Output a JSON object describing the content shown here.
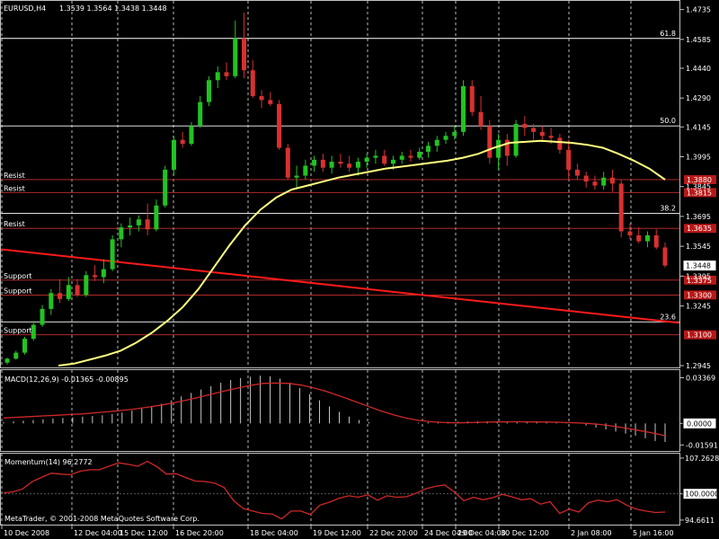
{
  "window": {
    "title": "EURUSD,H4",
    "ohlc": "1.3539 1.3564 1.3438 1.3448",
    "copyright": "MetaTrader, © 2001-2008 MetaQuotes Software Corp."
  },
  "chart_data": [
    {
      "type": "candlestick",
      "symbol": "EURUSD",
      "timeframe": "H4",
      "ylim": [
        1.2945,
        1.4765
      ],
      "y_ticks": [
        "1.4735",
        "1.4585",
        "1.4440",
        "1.4290",
        "1.4145",
        "1.3995",
        "1.3845",
        "1.3695",
        "1.3545",
        "1.3395",
        "1.3245",
        "1.2945"
      ],
      "x_ticks": [
        "10 Dec 2008",
        "12 Dec 04:00",
        "15 Dec 12:00",
        "16 Dec 20:00",
        "18 Dec 04:00",
        "19 Dec 12:00",
        "22 Dec 20:00",
        "24 Dec 04:00",
        "29 Dec 04:00",
        "30 Dec 12:00",
        "2 Jan 08:00",
        "5 Jan 16:00"
      ],
      "current_price": "1.3448",
      "fib_levels": [
        {
          "label": "61.8",
          "price": 1.459
        },
        {
          "label": "50.0",
          "price": 1.415
        },
        {
          "label": "38.2",
          "price": 1.371
        },
        {
          "label": "23.6",
          "price": 1.3165
        }
      ],
      "sr_levels": [
        {
          "label": "Resist",
          "price": 1.388,
          "tag": "1.3880"
        },
        {
          "label": "Resist",
          "price": 1.3815,
          "tag": "1.3815"
        },
        {
          "label": "Resist",
          "price": 1.3635,
          "tag": "1.3635"
        },
        {
          "label": "Support",
          "price": 1.3375,
          "tag": "1.3375"
        },
        {
          "label": "Support",
          "price": 1.33,
          "tag": "1.3300"
        },
        {
          "label": "Support",
          "price": 1.31,
          "tag": "1.3100"
        }
      ],
      "trendline": {
        "start": 1.353,
        "end": 1.316
      },
      "moving_average": [
        1.2945,
        1.2955,
        1.2975,
        1.2995,
        1.302,
        1.306,
        1.311,
        1.317,
        1.324,
        1.333,
        1.344,
        1.355,
        1.365,
        1.373,
        1.379,
        1.383,
        1.385,
        1.387,
        1.389,
        1.3905,
        1.392,
        1.3935,
        1.3945,
        1.3955,
        1.3965,
        1.3975,
        1.399,
        1.401,
        1.404,
        1.4065,
        1.407,
        1.4075,
        1.407,
        1.4065,
        1.4055,
        1.404,
        1.401,
        1.3975,
        1.3935,
        1.388
      ],
      "candles": [
        [
          1.296,
          1.2985,
          1.295,
          1.298
        ],
        [
          1.298,
          1.302,
          1.2975,
          1.301
        ],
        [
          1.301,
          1.309,
          1.3,
          1.308
        ],
        [
          1.308,
          1.317,
          1.307,
          1.315
        ],
        [
          1.315,
          1.325,
          1.314,
          1.323
        ],
        [
          1.323,
          1.333,
          1.32,
          1.331
        ],
        [
          1.331,
          1.338,
          1.326,
          1.328
        ],
        [
          1.328,
          1.339,
          1.327,
          1.335
        ],
        [
          1.335,
          1.338,
          1.329,
          1.33
        ],
        [
          1.33,
          1.342,
          1.329,
          1.34
        ],
        [
          1.34,
          1.345,
          1.337,
          1.339
        ],
        [
          1.339,
          1.348,
          1.336,
          1.343
        ],
        [
          1.343,
          1.36,
          1.342,
          1.358
        ],
        [
          1.358,
          1.366,
          1.354,
          1.364
        ],
        [
          1.364,
          1.369,
          1.36,
          1.365
        ],
        [
          1.365,
          1.37,
          1.362,
          1.368
        ],
        [
          1.368,
          1.376,
          1.36,
          1.363
        ],
        [
          1.363,
          1.378,
          1.362,
          1.375
        ],
        [
          1.375,
          1.395,
          1.374,
          1.393
        ],
        [
          1.393,
          1.41,
          1.39,
          1.408
        ],
        [
          1.408,
          1.412,
          1.404,
          1.406
        ],
        [
          1.406,
          1.417,
          1.405,
          1.415
        ],
        [
          1.415,
          1.43,
          1.414,
          1.427
        ],
        [
          1.427,
          1.44,
          1.425,
          1.438
        ],
        [
          1.438,
          1.445,
          1.434,
          1.442
        ],
        [
          1.442,
          1.447,
          1.438,
          1.44
        ],
        [
          1.44,
          1.468,
          1.439,
          1.459
        ],
        [
          1.459,
          1.472,
          1.439,
          1.443
        ],
        [
          1.443,
          1.448,
          1.429,
          1.43
        ],
        [
          1.43,
          1.433,
          1.424,
          1.428
        ],
        [
          1.428,
          1.432,
          1.425,
          1.426
        ],
        [
          1.426,
          1.428,
          1.403,
          1.404
        ],
        [
          1.404,
          1.406,
          1.388,
          1.389
        ],
        [
          1.389,
          1.395,
          1.384,
          1.39
        ],
        [
          1.39,
          1.398,
          1.388,
          1.395
        ],
        [
          1.395,
          1.4,
          1.392,
          1.398
        ],
        [
          1.398,
          1.401,
          1.392,
          1.394
        ],
        [
          1.394,
          1.4,
          1.391,
          1.397
        ],
        [
          1.397,
          1.401,
          1.394,
          1.396
        ],
        [
          1.396,
          1.4,
          1.392,
          1.394
        ],
        [
          1.394,
          1.399,
          1.39,
          1.397
        ],
        [
          1.397,
          1.401,
          1.394,
          1.399
        ],
        [
          1.399,
          1.403,
          1.396,
          1.4
        ],
        [
          1.4,
          1.403,
          1.395,
          1.396
        ],
        [
          1.396,
          1.4,
          1.393,
          1.398
        ],
        [
          1.398,
          1.402,
          1.396,
          1.4
        ],
        [
          1.4,
          1.403,
          1.397,
          1.399
        ],
        [
          1.399,
          1.404,
          1.398,
          1.402
        ],
        [
          1.402,
          1.407,
          1.399,
          1.405
        ],
        [
          1.405,
          1.41,
          1.402,
          1.408
        ],
        [
          1.408,
          1.412,
          1.406,
          1.41
        ],
        [
          1.41,
          1.415,
          1.408,
          1.412
        ],
        [
          1.412,
          1.438,
          1.41,
          1.435
        ],
        [
          1.435,
          1.438,
          1.42,
          1.422
        ],
        [
          1.422,
          1.43,
          1.413,
          1.415
        ],
        [
          1.415,
          1.418,
          1.396,
          1.399
        ],
        [
          1.399,
          1.411,
          1.393,
          1.408
        ],
        [
          1.408,
          1.411,
          1.395,
          1.4
        ],
        [
          1.4,
          1.418,
          1.399,
          1.416
        ],
        [
          1.416,
          1.42,
          1.41,
          1.414
        ],
        [
          1.414,
          1.416,
          1.408,
          1.412
        ],
        [
          1.412,
          1.415,
          1.408,
          1.41
        ],
        [
          1.41,
          1.414,
          1.406,
          1.409
        ],
        [
          1.409,
          1.411,
          1.401,
          1.403
        ],
        [
          1.403,
          1.408,
          1.388,
          1.393
        ],
        [
          1.393,
          1.396,
          1.388,
          1.39
        ],
        [
          1.39,
          1.392,
          1.384,
          1.387
        ],
        [
          1.387,
          1.39,
          1.383,
          1.385
        ],
        [
          1.385,
          1.392,
          1.383,
          1.389
        ],
        [
          1.389,
          1.393,
          1.382,
          1.386
        ],
        [
          1.386,
          1.388,
          1.359,
          1.362
        ],
        [
          1.362,
          1.366,
          1.358,
          1.36
        ],
        [
          1.36,
          1.364,
          1.356,
          1.357
        ],
        [
          1.357,
          1.362,
          1.354,
          1.36
        ],
        [
          1.36,
          1.363,
          1.353,
          1.3539
        ],
        [
          1.3539,
          1.3564,
          1.3438,
          1.3448
        ]
      ]
    },
    {
      "type": "macd",
      "label": "MACD(12,26,9) -0.01365 -0.00895",
      "ylim": [
        -0.019,
        0.038
      ],
      "y_ticks": [
        "0.03369",
        "0.0000",
        "-0.01591"
      ],
      "histogram": [
        0.001,
        0.0015,
        0.002,
        0.0025,
        0.003,
        0.0035,
        0.004,
        0.0045,
        0.005,
        0.0055,
        0.006,
        0.007,
        0.008,
        0.0095,
        0.011,
        0.0125,
        0.0145,
        0.017,
        0.02,
        0.0225,
        0.025,
        0.0275,
        0.03,
        0.032,
        0.0335,
        0.0345,
        0.0352,
        0.0348,
        0.033,
        0.03,
        0.026,
        0.0215,
        0.017,
        0.0125,
        0.0085,
        0.005,
        0.0025,
        0.001,
        0.0,
        0.0,
        0.0,
        0.0,
        0.0005,
        0.0008,
        0.001,
        0.0012,
        0.0013,
        0.0014,
        0.0015,
        0.0015,
        0.0014,
        0.0013,
        0.0012,
        0.0011,
        0.0009,
        0.0007,
        0.0005,
        0.0003,
        0.0,
        -0.0015,
        -0.003,
        -0.0045,
        -0.006,
        -0.0075,
        -0.009,
        -0.011,
        -0.013,
        -0.0137
      ],
      "signal": [
        0.004,
        0.0045,
        0.005,
        0.0055,
        0.006,
        0.0065,
        0.007,
        0.0078,
        0.0086,
        0.0095,
        0.0105,
        0.0118,
        0.0133,
        0.015,
        0.017,
        0.0192,
        0.0215,
        0.0238,
        0.026,
        0.028,
        0.0295,
        0.0298,
        0.0295,
        0.0282,
        0.026,
        0.0232,
        0.02,
        0.0165,
        0.013,
        0.0095,
        0.0065,
        0.004,
        0.0022,
        0.0012,
        0.0006,
        0.0004,
        0.0006,
        0.0009,
        0.0011,
        0.0012,
        0.0012,
        0.0011,
        0.001,
        0.0008,
        0.0005,
        0.0,
        -0.0008,
        -0.002,
        -0.0035,
        -0.0052,
        -0.007,
        -0.009
      ]
    },
    {
      "type": "momentum",
      "label": "Momentum(14) 96.2772",
      "ylim": [
        94.1,
        107.8
      ],
      "y_ticks": [
        "107.2628",
        "100.0000",
        "94.6611"
      ],
      "values": [
        100.2,
        100.4,
        101.0,
        102.5,
        103.4,
        104.2,
        104.0,
        103.9,
        104.6,
        104.9,
        104.9,
        105.6,
        106.3,
        106.0,
        105.6,
        106.6,
        105.5,
        104.0,
        104.1,
        103.3,
        102.6,
        102.5,
        102.2,
        101.3,
        98.6,
        97.0,
        96.5,
        96.0,
        95.9,
        94.9,
        96.5,
        96.5,
        95.8,
        97.7,
        98.3,
        99.1,
        99.6,
        99.3,
        99.8,
        98.7,
        99.6,
        99.3,
        99.4,
        100.1,
        101.0,
        101.5,
        101.8,
        100.4,
        98.6,
        99.3,
        98.8,
        99.2,
        99.9,
        99.4,
        98.8,
        99.0,
        97.9,
        98.4,
        96.0,
        96.9,
        96.3,
        98.2,
        98.7,
        98.4,
        98.8,
        97.7,
        96.9,
        96.5,
        96.2,
        96.3
      ]
    }
  ]
}
